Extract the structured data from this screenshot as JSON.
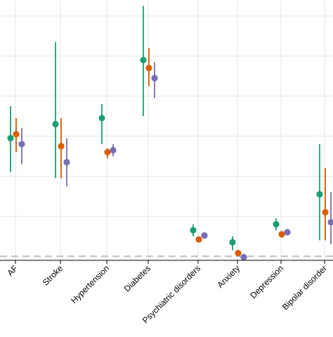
{
  "colors": {
    "background": "#ffffff",
    "grid": "#e6e6e6",
    "reference_line": "#bdbdbd",
    "axis": "#000000"
  },
  "chart_data": {
    "type": "scatter",
    "subtype": "dot-and-whisker",
    "title": "",
    "xlabel": "",
    "ylabel": "",
    "categories": [
      "AF",
      "Stroke",
      "Hypertension",
      "Diabetes",
      "Psychiatric disorders",
      "Anxiety",
      "Depression",
      "Bipolar disorder"
    ],
    "ylim": [
      0.9,
      7.4
    ],
    "reference_line": 1.0,
    "grid": true,
    "legend": "none",
    "series": [
      {
        "color": "#1b9e77",
        "values": [
          3.95,
          4.3,
          4.45,
          5.9,
          1.65,
          1.35,
          1.8,
          2.55
        ],
        "lower": [
          3.1,
          2.95,
          3.8,
          4.5,
          1.5,
          1.15,
          1.65,
          1.4
        ],
        "upper": [
          4.75,
          6.35,
          4.8,
          7.25,
          1.8,
          1.5,
          1.95,
          3.8
        ]
      },
      {
        "color": "#d95f02",
        "values": [
          4.05,
          3.75,
          3.6,
          5.7,
          1.42,
          1.08,
          1.55,
          2.1
        ],
        "lower": [
          3.6,
          2.95,
          3.45,
          5.25,
          1.38,
          1.05,
          1.5,
          1.4
        ],
        "upper": [
          4.45,
          4.45,
          3.7,
          6.2,
          1.45,
          1.1,
          1.6,
          3.2
        ]
      },
      {
        "color": "#7570b3",
        "values": [
          3.8,
          3.35,
          3.65,
          5.45,
          1.52,
          0.98,
          1.6,
          1.85
        ],
        "lower": [
          3.3,
          2.75,
          3.5,
          4.95,
          1.48,
          0.92,
          1.55,
          1.3
        ],
        "upper": [
          4.2,
          3.95,
          3.8,
          5.85,
          1.56,
          1.02,
          1.65,
          2.6
        ]
      }
    ]
  }
}
